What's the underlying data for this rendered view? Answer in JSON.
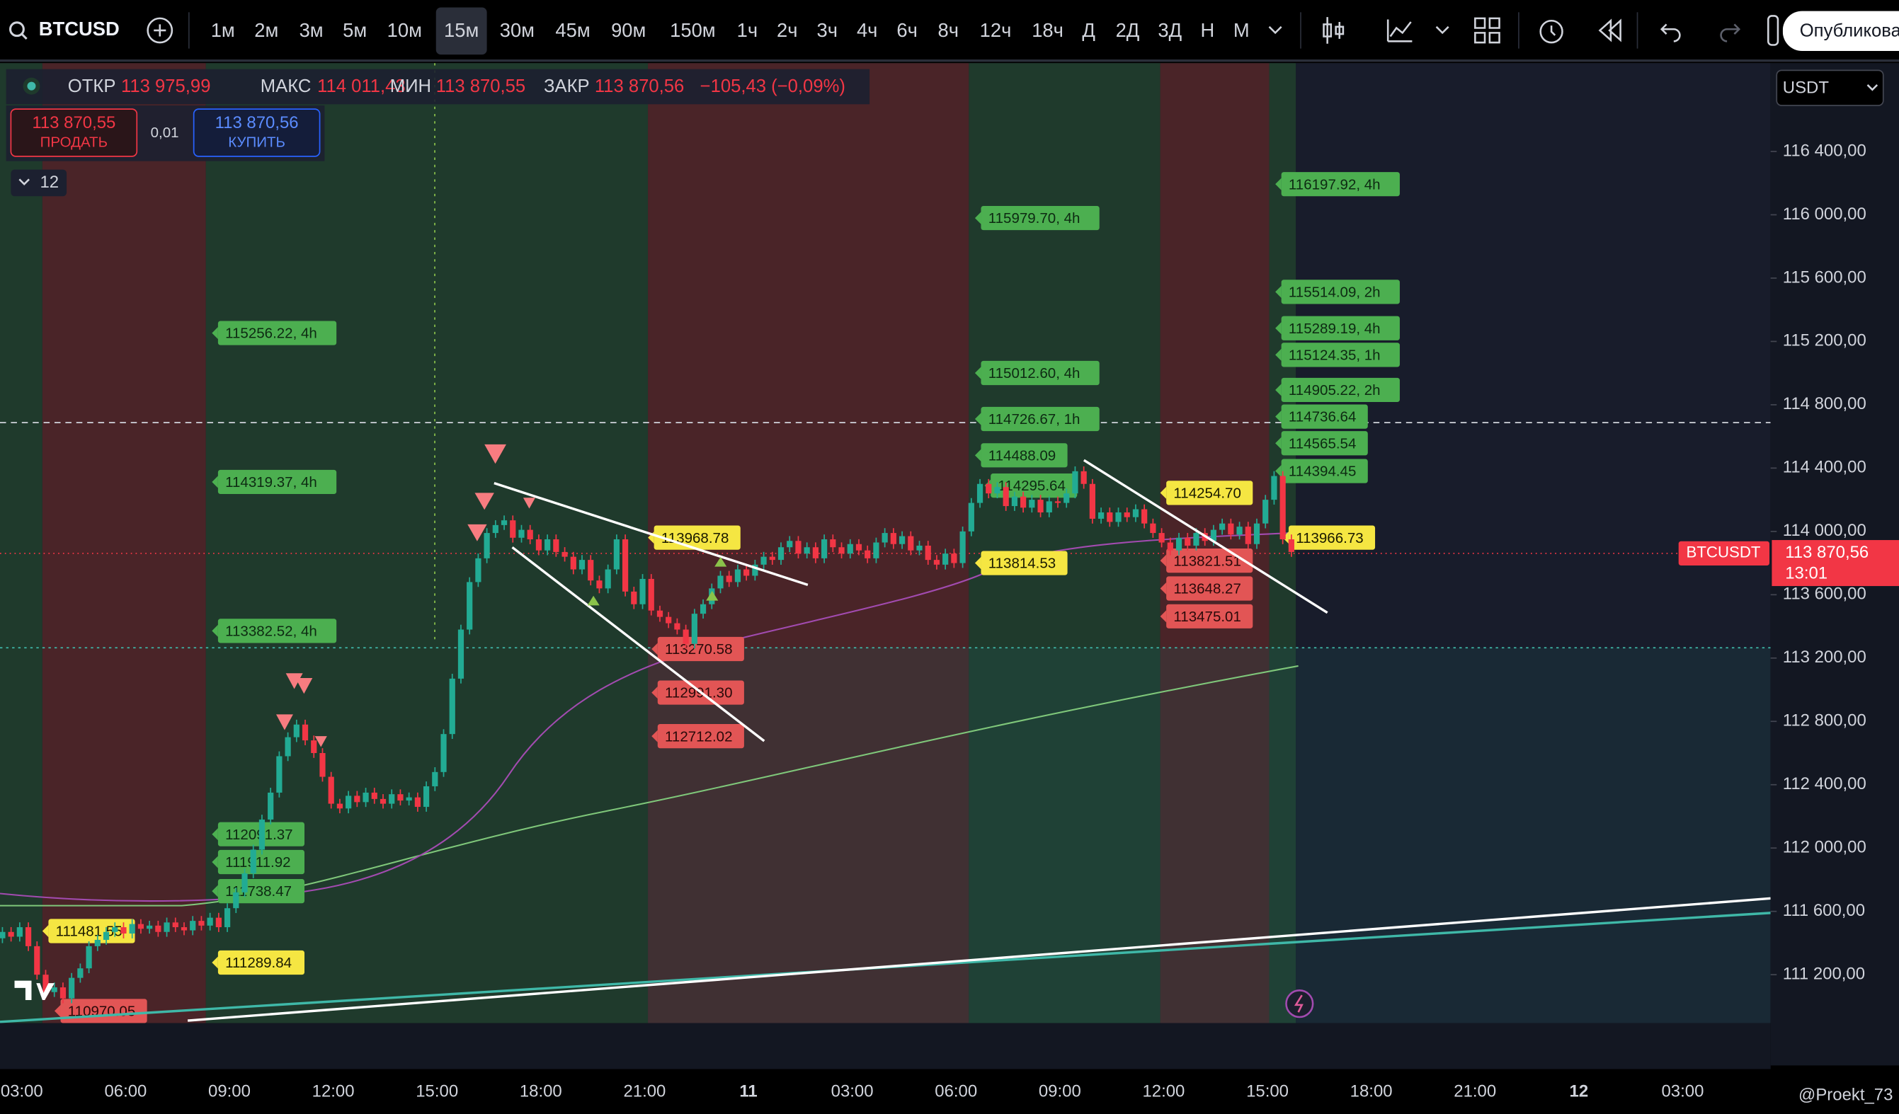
{
  "toolbar": {
    "symbol": "BTCUSD",
    "timeframes": [
      "1м",
      "2м",
      "3м",
      "5м",
      "10м",
      "15м",
      "30м",
      "45м",
      "90м",
      "150м",
      "1ч",
      "2ч",
      "3ч",
      "4ч",
      "6ч",
      "8ч",
      "12ч",
      "18ч",
      "Д",
      "2Д",
      "3Д",
      "Н",
      "М"
    ],
    "active_timeframe": "15м",
    "publish": "Опубликовать"
  },
  "legend": {
    "open_label": "ОТКР",
    "open": "113 975,99",
    "high_label": "МАКС",
    "high": "114 011,43",
    "low_label": "МИН",
    "low": "113 870,55",
    "close_label": "ЗАКР",
    "close": "113 870,56",
    "change": "−105,43 (−0,09%)"
  },
  "trade": {
    "sell_price": "113 870,55",
    "sell": "ПРОДАТЬ",
    "spread": "0,01",
    "buy_price": "113 870,56",
    "buy": "КУПИТЬ"
  },
  "indicator_count": "12",
  "currency": "USDT",
  "price_axis": {
    "ticks": [
      {
        "value": 116400,
        "label": "116 400,00"
      },
      {
        "value": 116000,
        "label": "116 000,00"
      },
      {
        "value": 115600,
        "label": "115 600,00"
      },
      {
        "value": 115200,
        "label": "115 200,00"
      },
      {
        "value": 114800,
        "label": "114 800,00"
      },
      {
        "value": 114400,
        "label": "114 400,00"
      },
      {
        "value": 114000,
        "label": "114 000,00"
      },
      {
        "value": 113600,
        "label": "113 600,00"
      },
      {
        "value": 113200,
        "label": "113 200,00"
      },
      {
        "value": 112800,
        "label": "112 800,00"
      },
      {
        "value": 112400,
        "label": "112 400,00"
      },
      {
        "value": 112000,
        "label": "112 000,00"
      },
      {
        "value": 111600,
        "label": "111 600,00"
      },
      {
        "value": 111200,
        "label": "111 200,00"
      }
    ]
  },
  "last_price": {
    "symbol": "BTCUSDT",
    "label": "113 870,56",
    "countdown": "13:01"
  },
  "time_axis": [
    "03:00",
    "06:00",
    "09:00",
    "12:00",
    "15:00",
    "18:00",
    "21:00",
    "11",
    "03:00",
    "06:00",
    "09:00",
    "12:00",
    "15:00",
    "18:00",
    "21:00",
    "12",
    "03:00"
  ],
  "candles": {
    "first_open": 111430,
    "closes": [
      111470,
      111440,
      111500,
      111380,
      111200,
      111090,
      111120,
      111050,
      111180,
      111240,
      111380,
      111420,
      111470,
      111500,
      111460,
      111520,
      111490,
      111510,
      111470,
      111530,
      111500,
      111480,
      111540,
      111510,
      111560,
      111500,
      111620,
      111720,
      111840,
      111990,
      112180,
      112350,
      112580,
      112700,
      112780,
      112680,
      112600,
      112450,
      112280,
      112250,
      112330,
      112290,
      112350,
      112310,
      112280,
      112340,
      112300,
      112320,
      112260,
      112390,
      112480,
      112720,
      113070,
      113380,
      113680,
      113830,
      113990,
      114040,
      114070,
      113960,
      114010,
      113950,
      113880,
      113950,
      113870,
      113840,
      113760,
      113820,
      113690,
      113640,
      113760,
      113950,
      113620,
      113540,
      113700,
      113500,
      113460,
      113420,
      113380,
      113290,
      113480,
      113540,
      113640,
      113720,
      113680,
      113760,
      113720,
      113790,
      113840,
      113820,
      113900,
      113940,
      113860,
      113900,
      113830,
      113950,
      113900,
      113860,
      113920,
      113880,
      113830,
      113930,
      113990,
      113920,
      113970,
      113880,
      113910,
      113820,
      113790,
      113860,
      113800,
      114000,
      114180,
      114300,
      114240,
      114280,
      114160,
      114220,
      114150,
      114200,
      114120,
      114190,
      114180,
      114240,
      114380,
      114300,
      114080,
      114120,
      114060,
      114120,
      114090,
      114140,
      114050,
      113990,
      113930,
      113880,
      113960,
      113910,
      113990,
      113940,
      114010,
      114050,
      113980,
      114030,
      113920,
      114050,
      114200,
      114350,
      113950,
      113870
    ]
  },
  "levels": {
    "green": [
      "115256.22, 4h",
      "114319.37, 4h",
      "113382.52, 4h",
      "112091.37",
      "111911.92",
      "111738.47",
      "115979.70, 4h",
      "115012.60, 4h",
      "114726.67, 1h",
      "114488.09",
      "114295.64",
      "116197.92, 4h",
      "115514.09, 2h",
      "115289.19, 4h",
      "115124.35, 1h",
      "114905.22, 2h",
      "114736.64",
      "114565.54",
      "114394.45"
    ],
    "yellow": [
      "111481.55",
      "111289.84",
      "113968.78",
      "113814.53",
      "114254.70",
      "113966.73"
    ],
    "red": [
      "110970.05",
      "113270.58",
      "112991.30",
      "112712.02",
      "113821.51",
      "113648.27",
      "113475.01"
    ]
  },
  "watermark": "@Proekt_73"
}
